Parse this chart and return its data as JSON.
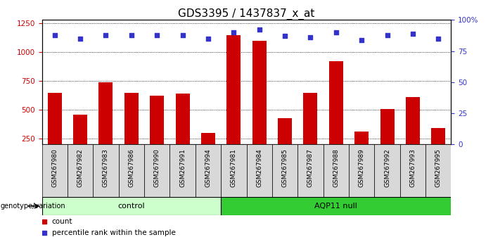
{
  "title": "GDS3395 / 1437837_x_at",
  "samples": [
    "GSM267980",
    "GSM267982",
    "GSM267983",
    "GSM267986",
    "GSM267990",
    "GSM267991",
    "GSM267994",
    "GSM267981",
    "GSM267984",
    "GSM267985",
    "GSM267987",
    "GSM267988",
    "GSM267989",
    "GSM267992",
    "GSM267993",
    "GSM267995"
  ],
  "bar_heights": [
    650,
    460,
    740,
    650,
    620,
    640,
    300,
    1150,
    1100,
    430,
    650,
    920,
    310,
    510,
    610,
    345
  ],
  "percentile_ranks": [
    88,
    85,
    88,
    88,
    88,
    88,
    85,
    90,
    92,
    87,
    86,
    90,
    84,
    88,
    89,
    85
  ],
  "control_count": 7,
  "aqp11_count": 9,
  "bar_color": "#cc0000",
  "dot_color": "#3333cc",
  "control_label": "control",
  "aqp11_label": "AQP11 null",
  "control_bg": "#ccffcc",
  "aqp11_bg": "#33cc33",
  "genotype_label": "genotype/variation",
  "left_tick_color": "#cc0000",
  "right_tick_color": "#3333cc",
  "ylim_left": [
    200,
    1280
  ],
  "ylim_right": [
    0,
    100
  ],
  "yticks_left": [
    250,
    500,
    750,
    1000,
    1250
  ],
  "yticks_right": [
    0,
    25,
    50,
    75,
    100
  ],
  "sample_bg": "#d8d8d8",
  "legend_count": "count",
  "legend_percentile": "percentile rank within the sample",
  "title_fontsize": 11,
  "tick_fontsize": 6.5,
  "label_fontsize": 8
}
